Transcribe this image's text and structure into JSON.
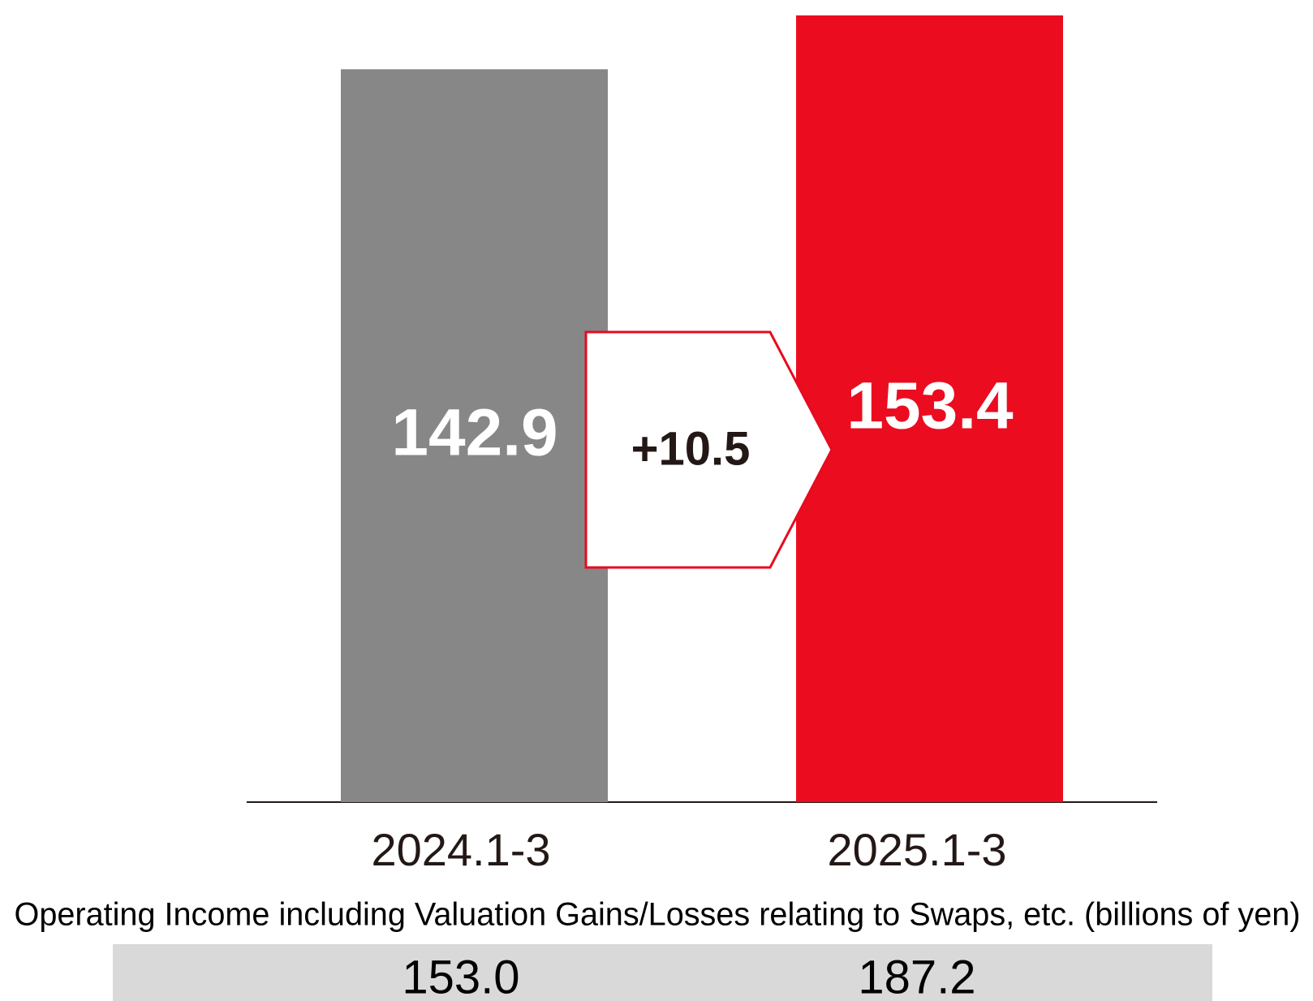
{
  "chart_data": {
    "type": "bar",
    "categories": [
      "2024.1-3",
      "2025.1-3"
    ],
    "values": [
      142.9,
      153.4
    ],
    "colors": [
      "#878787",
      "#eb0c20"
    ],
    "annotation": "+10.5",
    "table": {
      "title": "Operating Income including Valuation Gains/Losses relating to Swaps, etc.  (billions of yen)",
      "values": [
        "153.0",
        "187.2"
      ]
    }
  }
}
